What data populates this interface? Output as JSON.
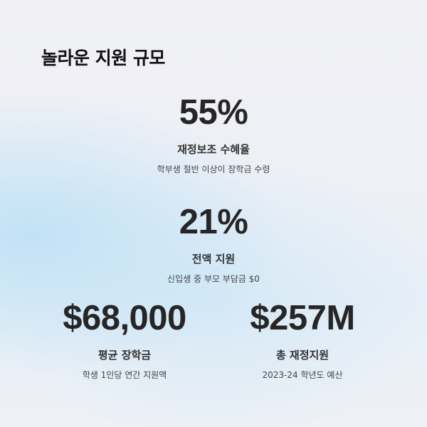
{
  "title": "놀라운 지원 규모",
  "stats": [
    {
      "value": "55%",
      "label": "재정보조 수혜율",
      "description": "학부생 절반 이상이 장학금 수령"
    },
    {
      "value": "21%",
      "label": "전액 지원",
      "description": "신입생 중 부모 부담금 $0"
    },
    {
      "value": "$68,000",
      "label": "평균 장학금",
      "description": "학생 1인당 연간 지원액"
    },
    {
      "value": "$257M",
      "label": "총 재정지원",
      "description": "2023-24 학년도 예산"
    }
  ]
}
